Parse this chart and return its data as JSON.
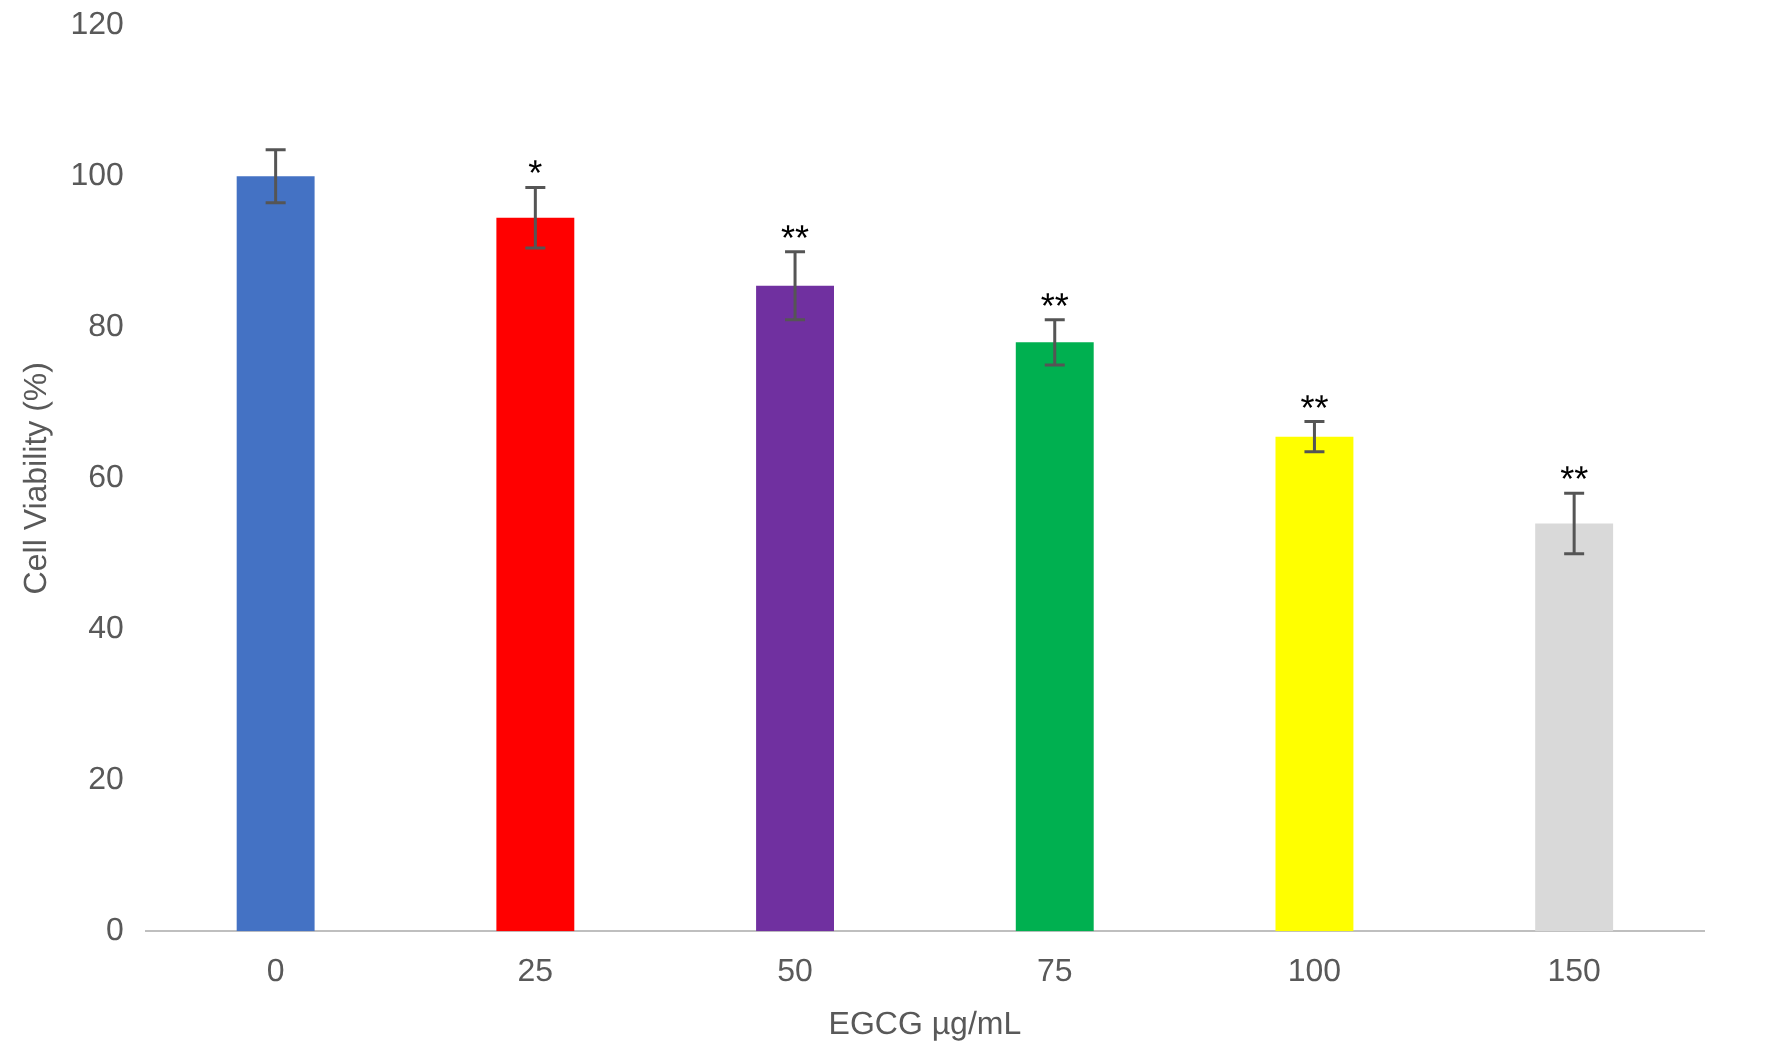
{
  "chart_data": {
    "type": "bar",
    "xlabel": "EGCG µg/mL",
    "ylabel": "Cell Viability (%)",
    "categories": [
      "0",
      "25",
      "50",
      "75",
      "100",
      "150"
    ],
    "values": [
      100,
      94.5,
      85.5,
      78,
      65.5,
      54
    ],
    "errors": [
      3.5,
      4,
      4.5,
      3,
      2,
      4
    ],
    "colors": [
      "#4472c4",
      "#ff0000",
      "#7030a0",
      "#00b050",
      "#ffff00",
      "#d9d9d9"
    ],
    "ylim": [
      0,
      120
    ],
    "yticks": [
      0,
      20,
      40,
      60,
      80,
      100,
      120
    ],
    "grid": false,
    "annotations": [
      "*",
      "**",
      "**",
      "**",
      "**"
    ]
  }
}
